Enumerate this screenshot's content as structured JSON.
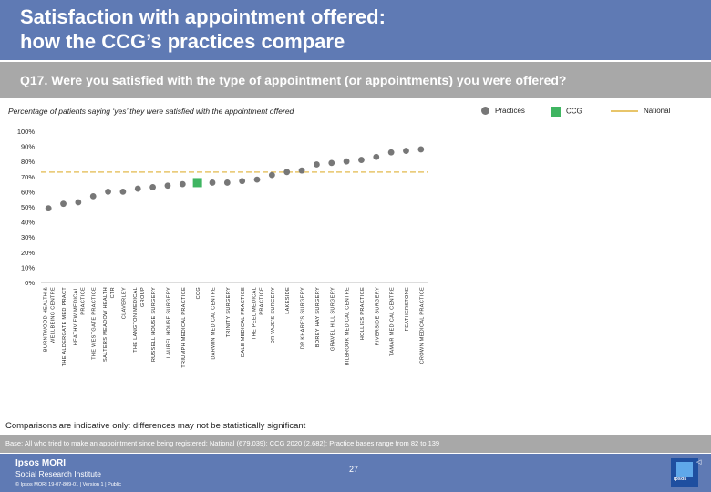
{
  "header": {
    "title_line1": "Satisfaction with appointment offered:",
    "title_line2": "how the CCG’s practices compare"
  },
  "question": "Q17. Were you satisfied with the type of appointment (or appointments) you were offered?",
  "subtitle": "Percentage of patients saying ‘yes’ they were satisfied with the appointment offered",
  "legend": {
    "practices": "Practices",
    "ccg": "CCG",
    "national": "National"
  },
  "colors": {
    "header": "#5f7ab4",
    "grey_bar": "#a8a8a8",
    "practice_dot": "#777777",
    "ccg_marker": "#3fb561",
    "national_line": "#e8c56a"
  },
  "chart_data": {
    "type": "scatter",
    "ylim": [
      0,
      100
    ],
    "yticks": [
      "0%",
      "10%",
      "20%",
      "30%",
      "40%",
      "50%",
      "60%",
      "70%",
      "80%",
      "90%",
      "100%"
    ],
    "national": 73,
    "categories": [
      "BURNTWOOD HEALTH & WELLBEING CENTRE",
      "THE ALDERGATE MED PRACT",
      "HEATHVIEW MEDICAL PRACTICE",
      "THE WESTGATE PRACTICE",
      "SALTERS MEADOW HEALTH CTR",
      "CLAVERLEY",
      "THE LANGTON MEDICAL GROUP",
      "RUSSELL HOUSE SURGERY",
      "LAUREL HOUSE SURGERY",
      "TRIUMPH MEDICAL PRACTICE",
      "CCG",
      "DARWIN MEDICAL CENTRE",
      "TRINITY SURGERY",
      "DALE MEDICAL PRACTICE",
      "THE PEEL MEDICAL PRACTICE",
      "DR VAJE'S SURGERY",
      "LAKESIDE",
      "DR KHARE'S SURGERY",
      "BOREY HAY SURGERY",
      "GRAVEL HILL SURGERY",
      "BILBROOK MEDICAL CENTRE",
      "HOLLIES PRACTICE",
      "RIVERSIDE SURGERY",
      "TAMAR MEDICAL CENTRE",
      "FEATHERSTONE",
      "CROWN MEDICAL PRACTICE"
    ],
    "values": [
      49,
      52,
      53,
      57,
      60,
      60,
      62,
      63,
      64,
      65,
      66,
      66,
      66,
      67,
      68,
      71,
      73,
      74,
      78,
      79,
      80,
      81,
      83,
      86,
      87,
      88
    ],
    "ccg_index": 10
  },
  "note": "Comparisons are indicative only: differences may not be statistically significant",
  "base": "Base: All who tried to make an appointment since being registered: National (679,039); CCG 2020 (2,682); Practice bases range from 82 to 139",
  "footer": {
    "brand1": "Ipsos MORI",
    "brand2": "Social Research Institute",
    "copy": "© Ipsos MORI    19-07-809-01 | Version 1 | Public",
    "page": "27",
    "logo_text": "Ipsos",
    "nav": "◁"
  }
}
